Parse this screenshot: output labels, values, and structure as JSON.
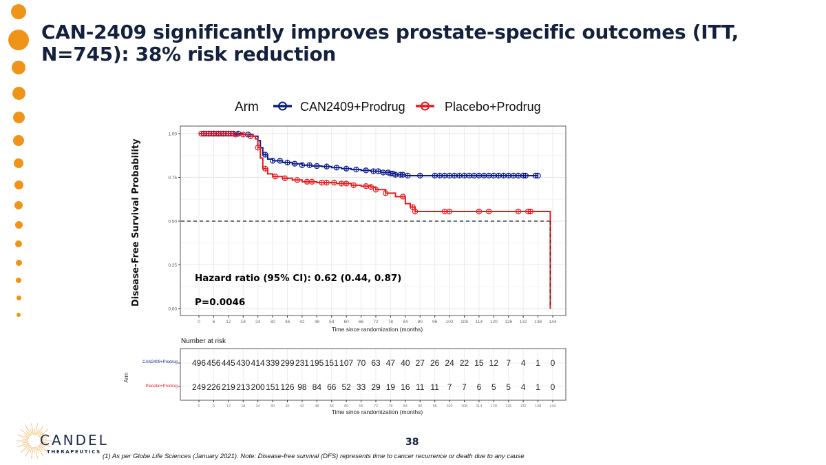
{
  "slide": {
    "title": "CAN-2409 significantly improves prostate-specific outcomes (ITT, N=745): 38% risk reduction",
    "page_number": "38",
    "footnote": "(1) As per Globe Life Sciences (January 2021). Note: Disease-free survival (DFS)  represents time to cancer recurrence or death due to any cause",
    "logo": {
      "name": "CANDEL",
      "subtitle": "THERAPEUTICS"
    },
    "accent_color": "#ef9419",
    "title_color": "#14213d"
  },
  "chart_data": {
    "type": "line",
    "subtype": "kaplan-meier",
    "legend_title": "Arm",
    "legend_position": "top",
    "ylabel": "Disease-Free Survival Probability",
    "xlabel": "Time since randomization (months)",
    "xlim": [
      0,
      144
    ],
    "ylim": [
      0,
      1
    ],
    "grid": true,
    "x_ticks": [
      0,
      6,
      12,
      18,
      24,
      30,
      36,
      42,
      48,
      54,
      60,
      66,
      72,
      78,
      84,
      90,
      96,
      102,
      108,
      114,
      120,
      126,
      132,
      138,
      144
    ],
    "y_ticks": [
      "0.00",
      "0.25",
      "0.50",
      "0.75",
      "1.00"
    ],
    "y_tick_values": [
      0,
      0.25,
      0.5,
      0.75,
      1.0
    ],
    "median_line": {
      "y": 0.5,
      "x_end": 143,
      "style": "dashed"
    },
    "annotations": {
      "hazard_ratio": "Hazard ratio (95% CI): 0.62 (0.44, 0.87)",
      "p_value": "P=0.0046"
    },
    "series": [
      {
        "name": "CAN2409+Prodrug",
        "color": "#0a1a8c",
        "x": [
          0,
          18,
          22,
          24,
          25,
          26,
          28,
          30,
          34,
          38,
          42,
          46,
          50,
          54,
          58,
          62,
          66,
          70,
          74,
          78,
          80,
          84,
          138
        ],
        "y": [
          1.0,
          0.995,
          0.985,
          0.96,
          0.92,
          0.88,
          0.855,
          0.845,
          0.835,
          0.828,
          0.82,
          0.815,
          0.812,
          0.806,
          0.8,
          0.795,
          0.79,
          0.785,
          0.778,
          0.772,
          0.765,
          0.76,
          0.76
        ],
        "censor_x": [
          2,
          4,
          6,
          8,
          10,
          12,
          14,
          16,
          20,
          27,
          30,
          33,
          36,
          39,
          42,
          45,
          48,
          52,
          56,
          60,
          64,
          68,
          71,
          73,
          75,
          77,
          78,
          79,
          80,
          82,
          83,
          85,
          90,
          96,
          98,
          100,
          102,
          104,
          106,
          108,
          110,
          112,
          114,
          116,
          118,
          120,
          122,
          124,
          126,
          128,
          130,
          132,
          133,
          137,
          138
        ]
      },
      {
        "name": "Placebo+Prodrug",
        "color": "#e8191c",
        "x": [
          0,
          14,
          20,
          23,
          24,
          25,
          26,
          28,
          30,
          34,
          38,
          42,
          48,
          56,
          62,
          66,
          70,
          72,
          76,
          80,
          84,
          86,
          88,
          143,
          143
        ],
        "y": [
          1.0,
          0.995,
          0.985,
          0.97,
          0.92,
          0.86,
          0.8,
          0.77,
          0.755,
          0.745,
          0.735,
          0.725,
          0.72,
          0.715,
          0.705,
          0.7,
          0.695,
          0.68,
          0.66,
          0.64,
          0.6,
          0.58,
          0.555,
          0.555,
          0.0
        ],
        "censor_x": [
          1,
          3,
          5,
          7,
          9,
          11,
          13,
          15,
          18,
          21,
          24,
          27,
          31,
          35,
          40,
          44,
          46,
          50,
          52,
          55,
          58,
          60,
          63,
          68,
          70,
          72,
          76,
          83,
          87,
          88,
          100,
          102,
          114,
          118,
          130,
          134,
          135
        ]
      }
    ],
    "risk_table": {
      "title": "Number at risk",
      "y_axis_label": "Arm",
      "xlabel": "Time since randomization (months)",
      "times": [
        0,
        6,
        12,
        18,
        24,
        30,
        36,
        42,
        48,
        54,
        60,
        66,
        72,
        78,
        84,
        90,
        96,
        102,
        108,
        114,
        120,
        126,
        132,
        138,
        144
      ],
      "rows": [
        {
          "arm": "CAN2409+Prodrug",
          "color": "#0a1a8c",
          "counts": [
            496,
            456,
            445,
            430,
            414,
            339,
            299,
            231,
            195,
            151,
            107,
            70,
            63,
            47,
            40,
            27,
            26,
            24,
            22,
            15,
            12,
            7,
            4,
            1,
            0
          ]
        },
        {
          "arm": "Placebo+Prodrug",
          "color": "#e8191c",
          "counts": [
            249,
            226,
            219,
            213,
            200,
            151,
            126,
            98,
            84,
            66,
            52,
            33,
            29,
            19,
            16,
            11,
            11,
            7,
            7,
            6,
            5,
            5,
            4,
            1,
            0
          ]
        }
      ]
    }
  }
}
